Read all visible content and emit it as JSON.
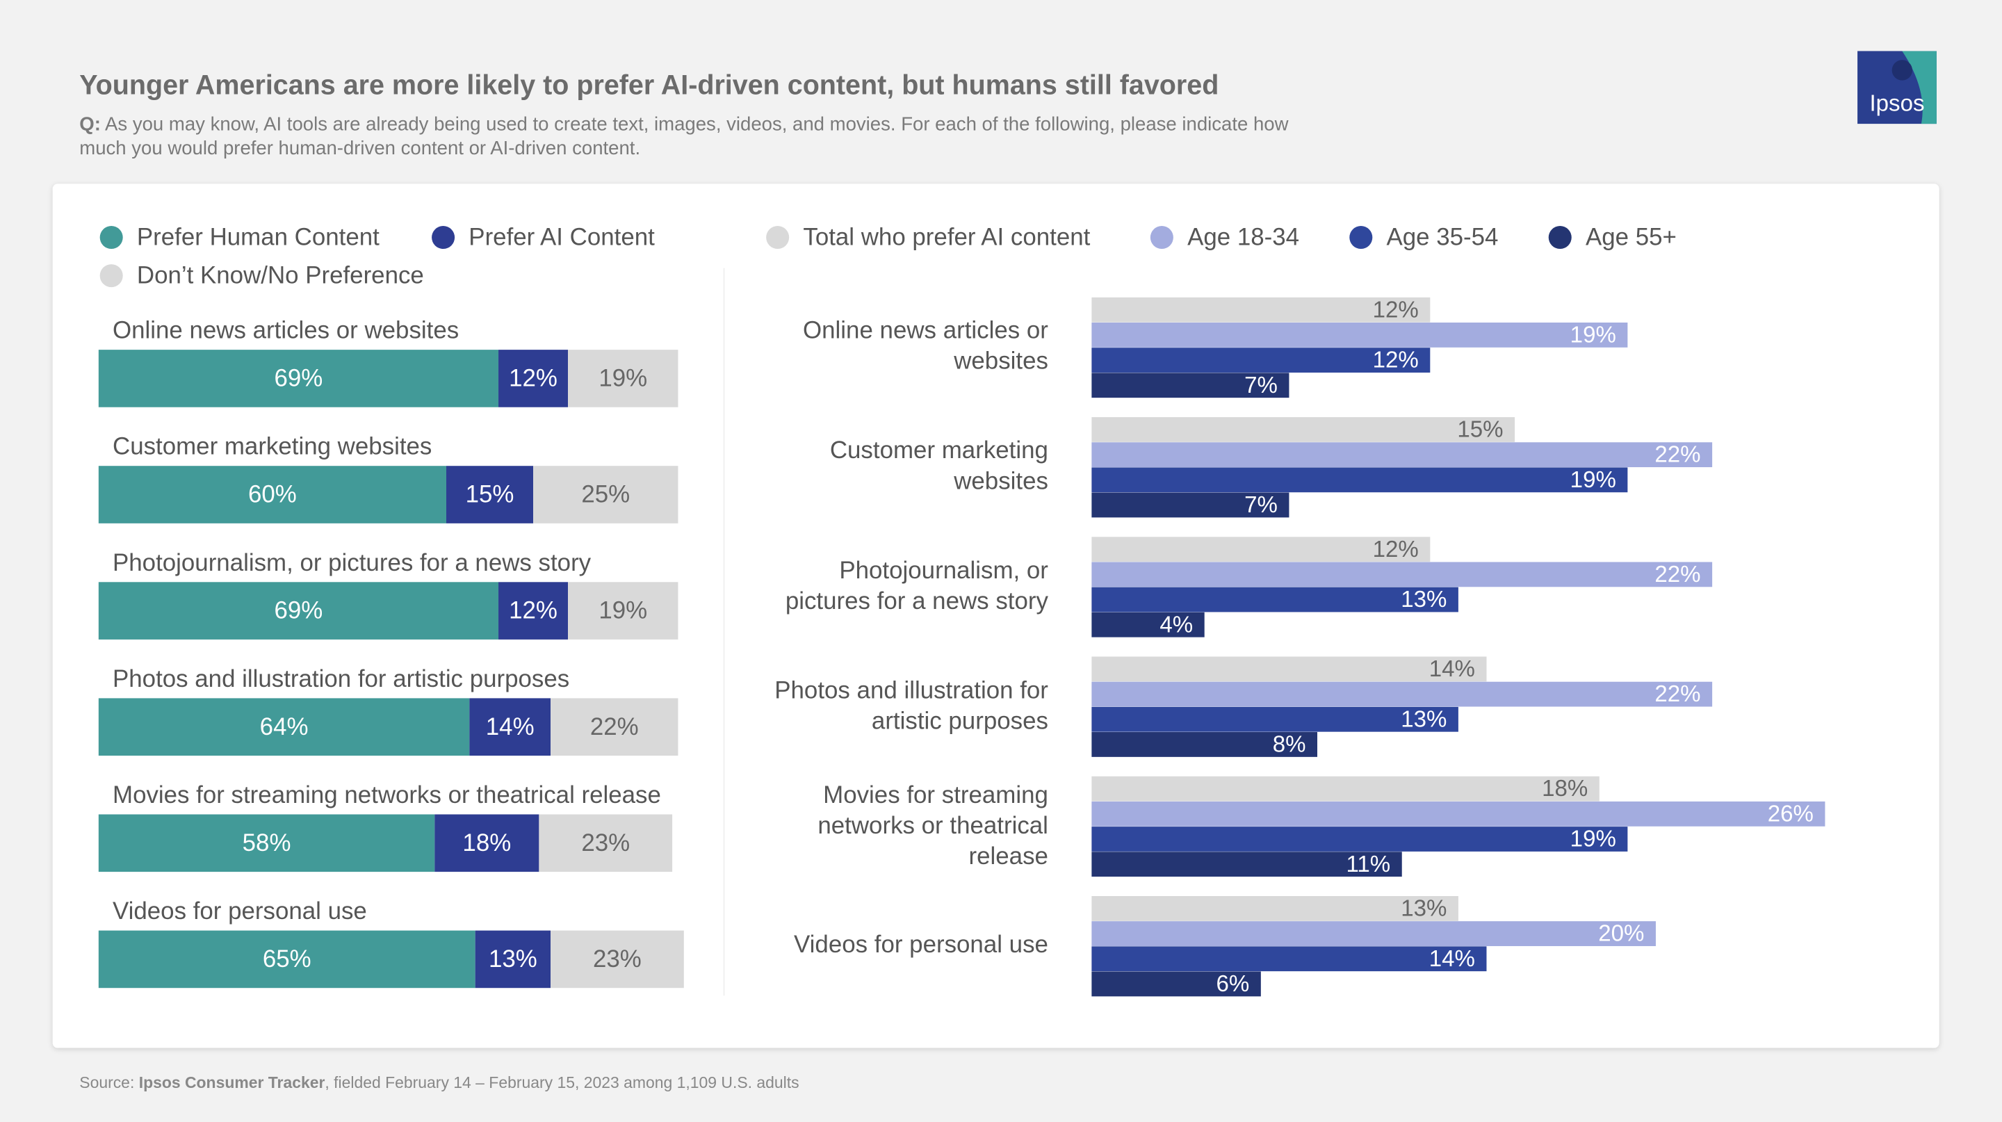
{
  "title": "Younger Americans are more likely to prefer AI-driven content, but humans still favored",
  "subtitle_label": "Q:",
  "subtitle": "As you may know, AI tools are already being used to create text, images, videos, and movies. For each of the following, please indicate how much you would prefer human-driven content or AI-driven content.",
  "logo": "Ipsos",
  "source": {
    "label": "Source:",
    "name": "Ipsos Consumer Tracker",
    "text": ", fielded February 14 – February 15, 2023 among 1,109 U.S. adults"
  },
  "chart_data": [
    {
      "type": "bar",
      "stacked": true,
      "orientation": "horizontal",
      "categories": [
        "Online news articles or websites",
        "Customer marketing websites",
        "Photojournalism, or pictures for a news story",
        "Photos and illustration for artistic purposes",
        "Movies for streaming networks or theatrical release",
        "Videos for personal use"
      ],
      "series": [
        {
          "name": "Prefer Human Content",
          "color": "#429a98",
          "values": [
            69,
            60,
            69,
            64,
            58,
            65
          ],
          "value_labels": [
            "69%",
            "60%",
            "69%",
            "64%",
            "58%",
            "65%"
          ]
        },
        {
          "name": "Prefer AI Content",
          "color": "#2e3d92",
          "values": [
            12,
            15,
            12,
            14,
            18,
            13
          ],
          "value_labels": [
            "12%",
            "15%",
            "12%",
            "14%",
            "18%",
            "13%"
          ]
        },
        {
          "name": "Don’t Know/No Preference",
          "color": "#d9d9d9",
          "values": [
            19,
            25,
            19,
            22,
            23,
            23
          ],
          "value_labels": [
            "19%",
            "25%",
            "19%",
            "22%",
            "23%",
            "23%"
          ]
        }
      ]
    },
    {
      "type": "bar",
      "stacked": false,
      "orientation": "horizontal",
      "categories": [
        "Online news articles or websites",
        "Customer marketing websites",
        "Photojournalism, or pictures for a news story",
        "Photos and illustration for artistic purposes",
        "Movies for streaming networks or theatrical release",
        "Videos for personal use"
      ],
      "series": [
        {
          "name": "Total who prefer AI content",
          "color": "#d9d9d9",
          "values": [
            12,
            15,
            12,
            14,
            18,
            13
          ],
          "value_labels": [
            "12%",
            "15%",
            "12%",
            "14%",
            "18%",
            "13%"
          ]
        },
        {
          "name": "Age 18-34",
          "color": "#a3acdf",
          "values": [
            19,
            22,
            22,
            22,
            26,
            20
          ],
          "value_labels": [
            "19%",
            "22%",
            "22%",
            "22%",
            "26%",
            "20%"
          ]
        },
        {
          "name": "Age 35-54",
          "color": "#2f479c",
          "values": [
            12,
            19,
            13,
            13,
            19,
            14
          ],
          "value_labels": [
            "12%",
            "19%",
            "13%",
            "13%",
            "19%",
            "14%"
          ]
        },
        {
          "name": "Age 55+",
          "color": "#243572",
          "values": [
            7,
            7,
            4,
            8,
            11,
            6
          ],
          "value_labels": [
            "7%",
            "7%",
            "4%",
            "8%",
            "11%",
            "6%"
          ]
        }
      ]
    }
  ]
}
